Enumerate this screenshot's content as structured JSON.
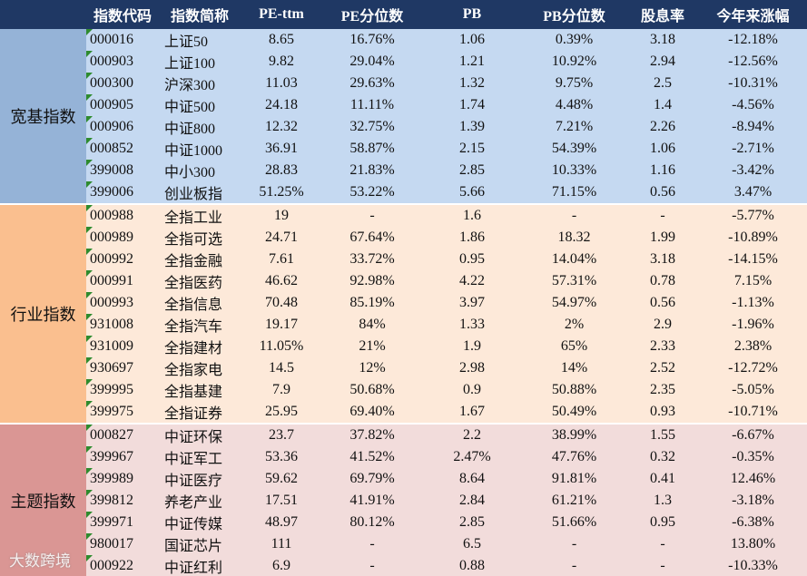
{
  "table": {
    "header": [
      "指数代码",
      "指数简称",
      "PE-ttm",
      "PE分位数",
      "PB",
      "PB分位数",
      "股息率",
      "今年来涨幅"
    ],
    "groups": [
      {
        "label": "宽基指数",
        "rows": [
          [
            "000016",
            "上证50",
            "8.65",
            "16.76%",
            "1.06",
            "0.39%",
            "3.18",
            "-12.18%"
          ],
          [
            "000903",
            "上证100",
            "9.82",
            "29.04%",
            "1.21",
            "10.92%",
            "2.94",
            "-12.56%"
          ],
          [
            "000300",
            "沪深300",
            "11.03",
            "29.63%",
            "1.32",
            "9.75%",
            "2.5",
            "-10.31%"
          ],
          [
            "000905",
            "中证500",
            "24.18",
            "11.11%",
            "1.74",
            "4.48%",
            "1.4",
            "-4.56%"
          ],
          [
            "000906",
            "中证800",
            "12.32",
            "32.75%",
            "1.39",
            "7.21%",
            "2.26",
            "-8.94%"
          ],
          [
            "000852",
            "中证1000",
            "36.91",
            "58.87%",
            "2.15",
            "54.39%",
            "1.06",
            "-2.71%"
          ],
          [
            "399008",
            "中小300",
            "28.83",
            "21.83%",
            "2.85",
            "10.33%",
            "1.16",
            "-3.42%"
          ],
          [
            "399006",
            "创业板指",
            "51.25%",
            "53.22%",
            "5.66",
            "71.15%",
            "0.56",
            "3.47%"
          ]
        ]
      },
      {
        "label": "行业指数",
        "rows": [
          [
            "000988",
            "全指工业",
            "19",
            "-",
            "1.6",
            "-",
            "-",
            "-5.77%"
          ],
          [
            "000989",
            "全指可选",
            "24.71",
            "67.64%",
            "1.86",
            "18.32",
            "1.99",
            "-10.89%"
          ],
          [
            "000992",
            "全指金融",
            "7.61",
            "33.72%",
            "0.95",
            "14.04%",
            "3.18",
            "-14.15%"
          ],
          [
            "000991",
            "全指医药",
            "46.62",
            "92.98%",
            "4.22",
            "57.31%",
            "0.78",
            "7.15%"
          ],
          [
            "000993",
            "全指信息",
            "70.48",
            "85.19%",
            "3.97",
            "54.97%",
            "0.56",
            "-1.13%"
          ],
          [
            "931008",
            "全指汽车",
            "19.17",
            "84%",
            "1.33",
            "2%",
            "2.9",
            "-1.96%"
          ],
          [
            "931009",
            "全指建材",
            "11.05%",
            "21%",
            "1.9",
            "65%",
            "2.33",
            "2.38%"
          ],
          [
            "930697",
            "全指家电",
            "14.5",
            "12%",
            "2.98",
            "14%",
            "2.52",
            "-12.72%"
          ],
          [
            "399995",
            "全指基建",
            "7.9",
            "50.68%",
            "0.9",
            "50.88%",
            "2.35",
            "-5.05%"
          ],
          [
            "399975",
            "全指证券",
            "25.95",
            "69.40%",
            "1.67",
            "50.49%",
            "0.93",
            "-10.71%"
          ]
        ]
      },
      {
        "label": "主题指数",
        "rows": [
          [
            "000827",
            "中证环保",
            "23.7",
            "37.82%",
            "2.2",
            "38.99%",
            "1.55",
            "-6.67%"
          ],
          [
            "399967",
            "中证军工",
            "53.36",
            "41.52%",
            "2.47%",
            "47.76%",
            "0.32",
            "-0.35%"
          ],
          [
            "399989",
            "中证医疗",
            "59.62",
            "69.79%",
            "8.64",
            "91.81%",
            "0.41",
            "12.46%"
          ],
          [
            "399812",
            "养老产业",
            "17.51",
            "41.91%",
            "2.84",
            "61.21%",
            "1.3",
            "-3.18%"
          ],
          [
            "399971",
            "中证传媒",
            "48.97",
            "80.12%",
            "2.85",
            "51.66%",
            "0.95",
            "-6.38%"
          ],
          [
            "980017",
            "国证芯片",
            "111",
            "-",
            "6.5",
            "-",
            "-",
            "13.80%"
          ],
          [
            "000922",
            "中证红利",
            "6.9",
            "-",
            "0.88",
            "-",
            "-",
            "-10.33%"
          ]
        ]
      }
    ]
  },
  "watermark": "大数跨境"
}
